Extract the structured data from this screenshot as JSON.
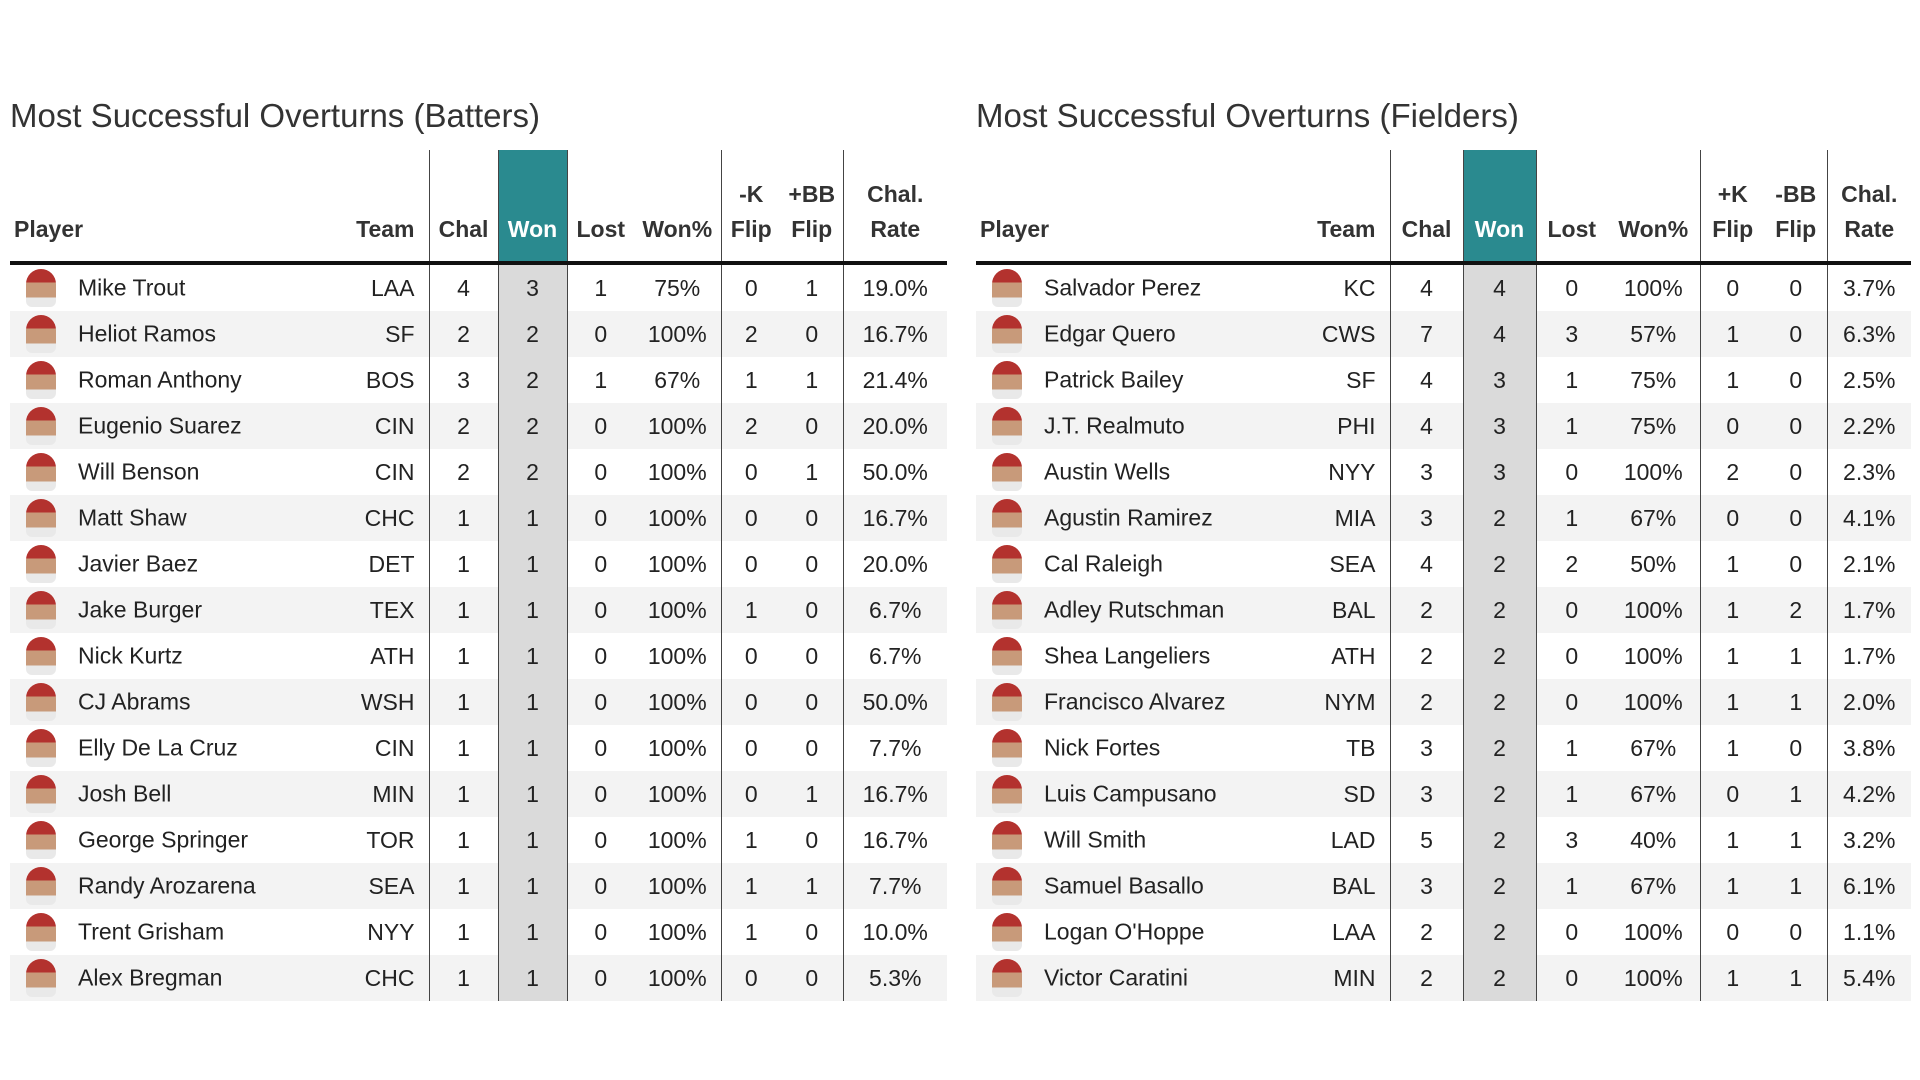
{
  "tables": [
    {
      "title": "Most Successful Overturns (Batters)",
      "headers": [
        "Player",
        "Team",
        "Chal",
        "Won",
        "Lost",
        "Won%",
        "-K\nFlip",
        "+BB\nFlip",
        "Chal.\nRate"
      ],
      "rows": [
        [
          "Mike Trout",
          "LAA",
          4,
          3,
          1,
          "75%",
          0,
          1,
          "19.0%"
        ],
        [
          "Heliot Ramos",
          "SF",
          2,
          2,
          0,
          "100%",
          2,
          0,
          "16.7%"
        ],
        [
          "Roman Anthony",
          "BOS",
          3,
          2,
          1,
          "67%",
          1,
          1,
          "21.4%"
        ],
        [
          "Eugenio Suarez",
          "CIN",
          2,
          2,
          0,
          "100%",
          2,
          0,
          "20.0%"
        ],
        [
          "Will Benson",
          "CIN",
          2,
          2,
          0,
          "100%",
          0,
          1,
          "50.0%"
        ],
        [
          "Matt Shaw",
          "CHC",
          1,
          1,
          0,
          "100%",
          0,
          0,
          "16.7%"
        ],
        [
          "Javier Baez",
          "DET",
          1,
          1,
          0,
          "100%",
          0,
          0,
          "20.0%"
        ],
        [
          "Jake Burger",
          "TEX",
          1,
          1,
          0,
          "100%",
          1,
          0,
          "6.7%"
        ],
        [
          "Nick Kurtz",
          "ATH",
          1,
          1,
          0,
          "100%",
          0,
          0,
          "6.7%"
        ],
        [
          "CJ Abrams",
          "WSH",
          1,
          1,
          0,
          "100%",
          0,
          0,
          "50.0%"
        ],
        [
          "Elly De La Cruz",
          "CIN",
          1,
          1,
          0,
          "100%",
          0,
          0,
          "7.7%"
        ],
        [
          "Josh Bell",
          "MIN",
          1,
          1,
          0,
          "100%",
          0,
          1,
          "16.7%"
        ],
        [
          "George Springer",
          "TOR",
          1,
          1,
          0,
          "100%",
          1,
          0,
          "16.7%"
        ],
        [
          "Randy Arozarena",
          "SEA",
          1,
          1,
          0,
          "100%",
          1,
          1,
          "7.7%"
        ],
        [
          "Trent Grisham",
          "NYY",
          1,
          1,
          0,
          "100%",
          1,
          0,
          "10.0%"
        ],
        [
          "Alex Bregman",
          "CHC",
          1,
          1,
          0,
          "100%",
          0,
          0,
          "5.3%"
        ]
      ]
    },
    {
      "title": "Most Successful Overturns (Fielders)",
      "headers": [
        "Player",
        "Team",
        "Chal",
        "Won",
        "Lost",
        "Won%",
        "+K\nFlip",
        "-BB\nFlip",
        "Chal.\nRate"
      ],
      "rows": [
        [
          "Salvador Perez",
          "KC",
          4,
          4,
          0,
          "100%",
          0,
          0,
          "3.7%"
        ],
        [
          "Edgar Quero",
          "CWS",
          7,
          4,
          3,
          "57%",
          1,
          0,
          "6.3%"
        ],
        [
          "Patrick Bailey",
          "SF",
          4,
          3,
          1,
          "75%",
          1,
          0,
          "2.5%"
        ],
        [
          "J.T. Realmuto",
          "PHI",
          4,
          3,
          1,
          "75%",
          0,
          0,
          "2.2%"
        ],
        [
          "Austin Wells",
          "NYY",
          3,
          3,
          0,
          "100%",
          2,
          0,
          "2.3%"
        ],
        [
          "Agustin Ramirez",
          "MIA",
          3,
          2,
          1,
          "67%",
          0,
          0,
          "4.1%"
        ],
        [
          "Cal Raleigh",
          "SEA",
          4,
          2,
          2,
          "50%",
          1,
          0,
          "2.1%"
        ],
        [
          "Adley Rutschman",
          "BAL",
          2,
          2,
          0,
          "100%",
          1,
          2,
          "1.7%"
        ],
        [
          "Shea Langeliers",
          "ATH",
          2,
          2,
          0,
          "100%",
          1,
          1,
          "1.7%"
        ],
        [
          "Francisco Alvarez",
          "NYM",
          2,
          2,
          0,
          "100%",
          1,
          1,
          "2.0%"
        ],
        [
          "Nick Fortes",
          "TB",
          3,
          2,
          1,
          "67%",
          1,
          0,
          "3.8%"
        ],
        [
          "Luis Campusano",
          "SD",
          3,
          2,
          1,
          "67%",
          0,
          1,
          "4.2%"
        ],
        [
          "Will Smith",
          "LAD",
          5,
          2,
          3,
          "40%",
          1,
          1,
          "3.2%"
        ],
        [
          "Samuel Basallo",
          "BAL",
          3,
          2,
          1,
          "67%",
          1,
          1,
          "6.1%"
        ],
        [
          "Logan O'Hoppe",
          "LAA",
          2,
          2,
          0,
          "100%",
          0,
          0,
          "1.1%"
        ],
        [
          "Victor Caratini",
          "MIN",
          2,
          2,
          0,
          "100%",
          1,
          1,
          "5.4%"
        ]
      ]
    }
  ]
}
